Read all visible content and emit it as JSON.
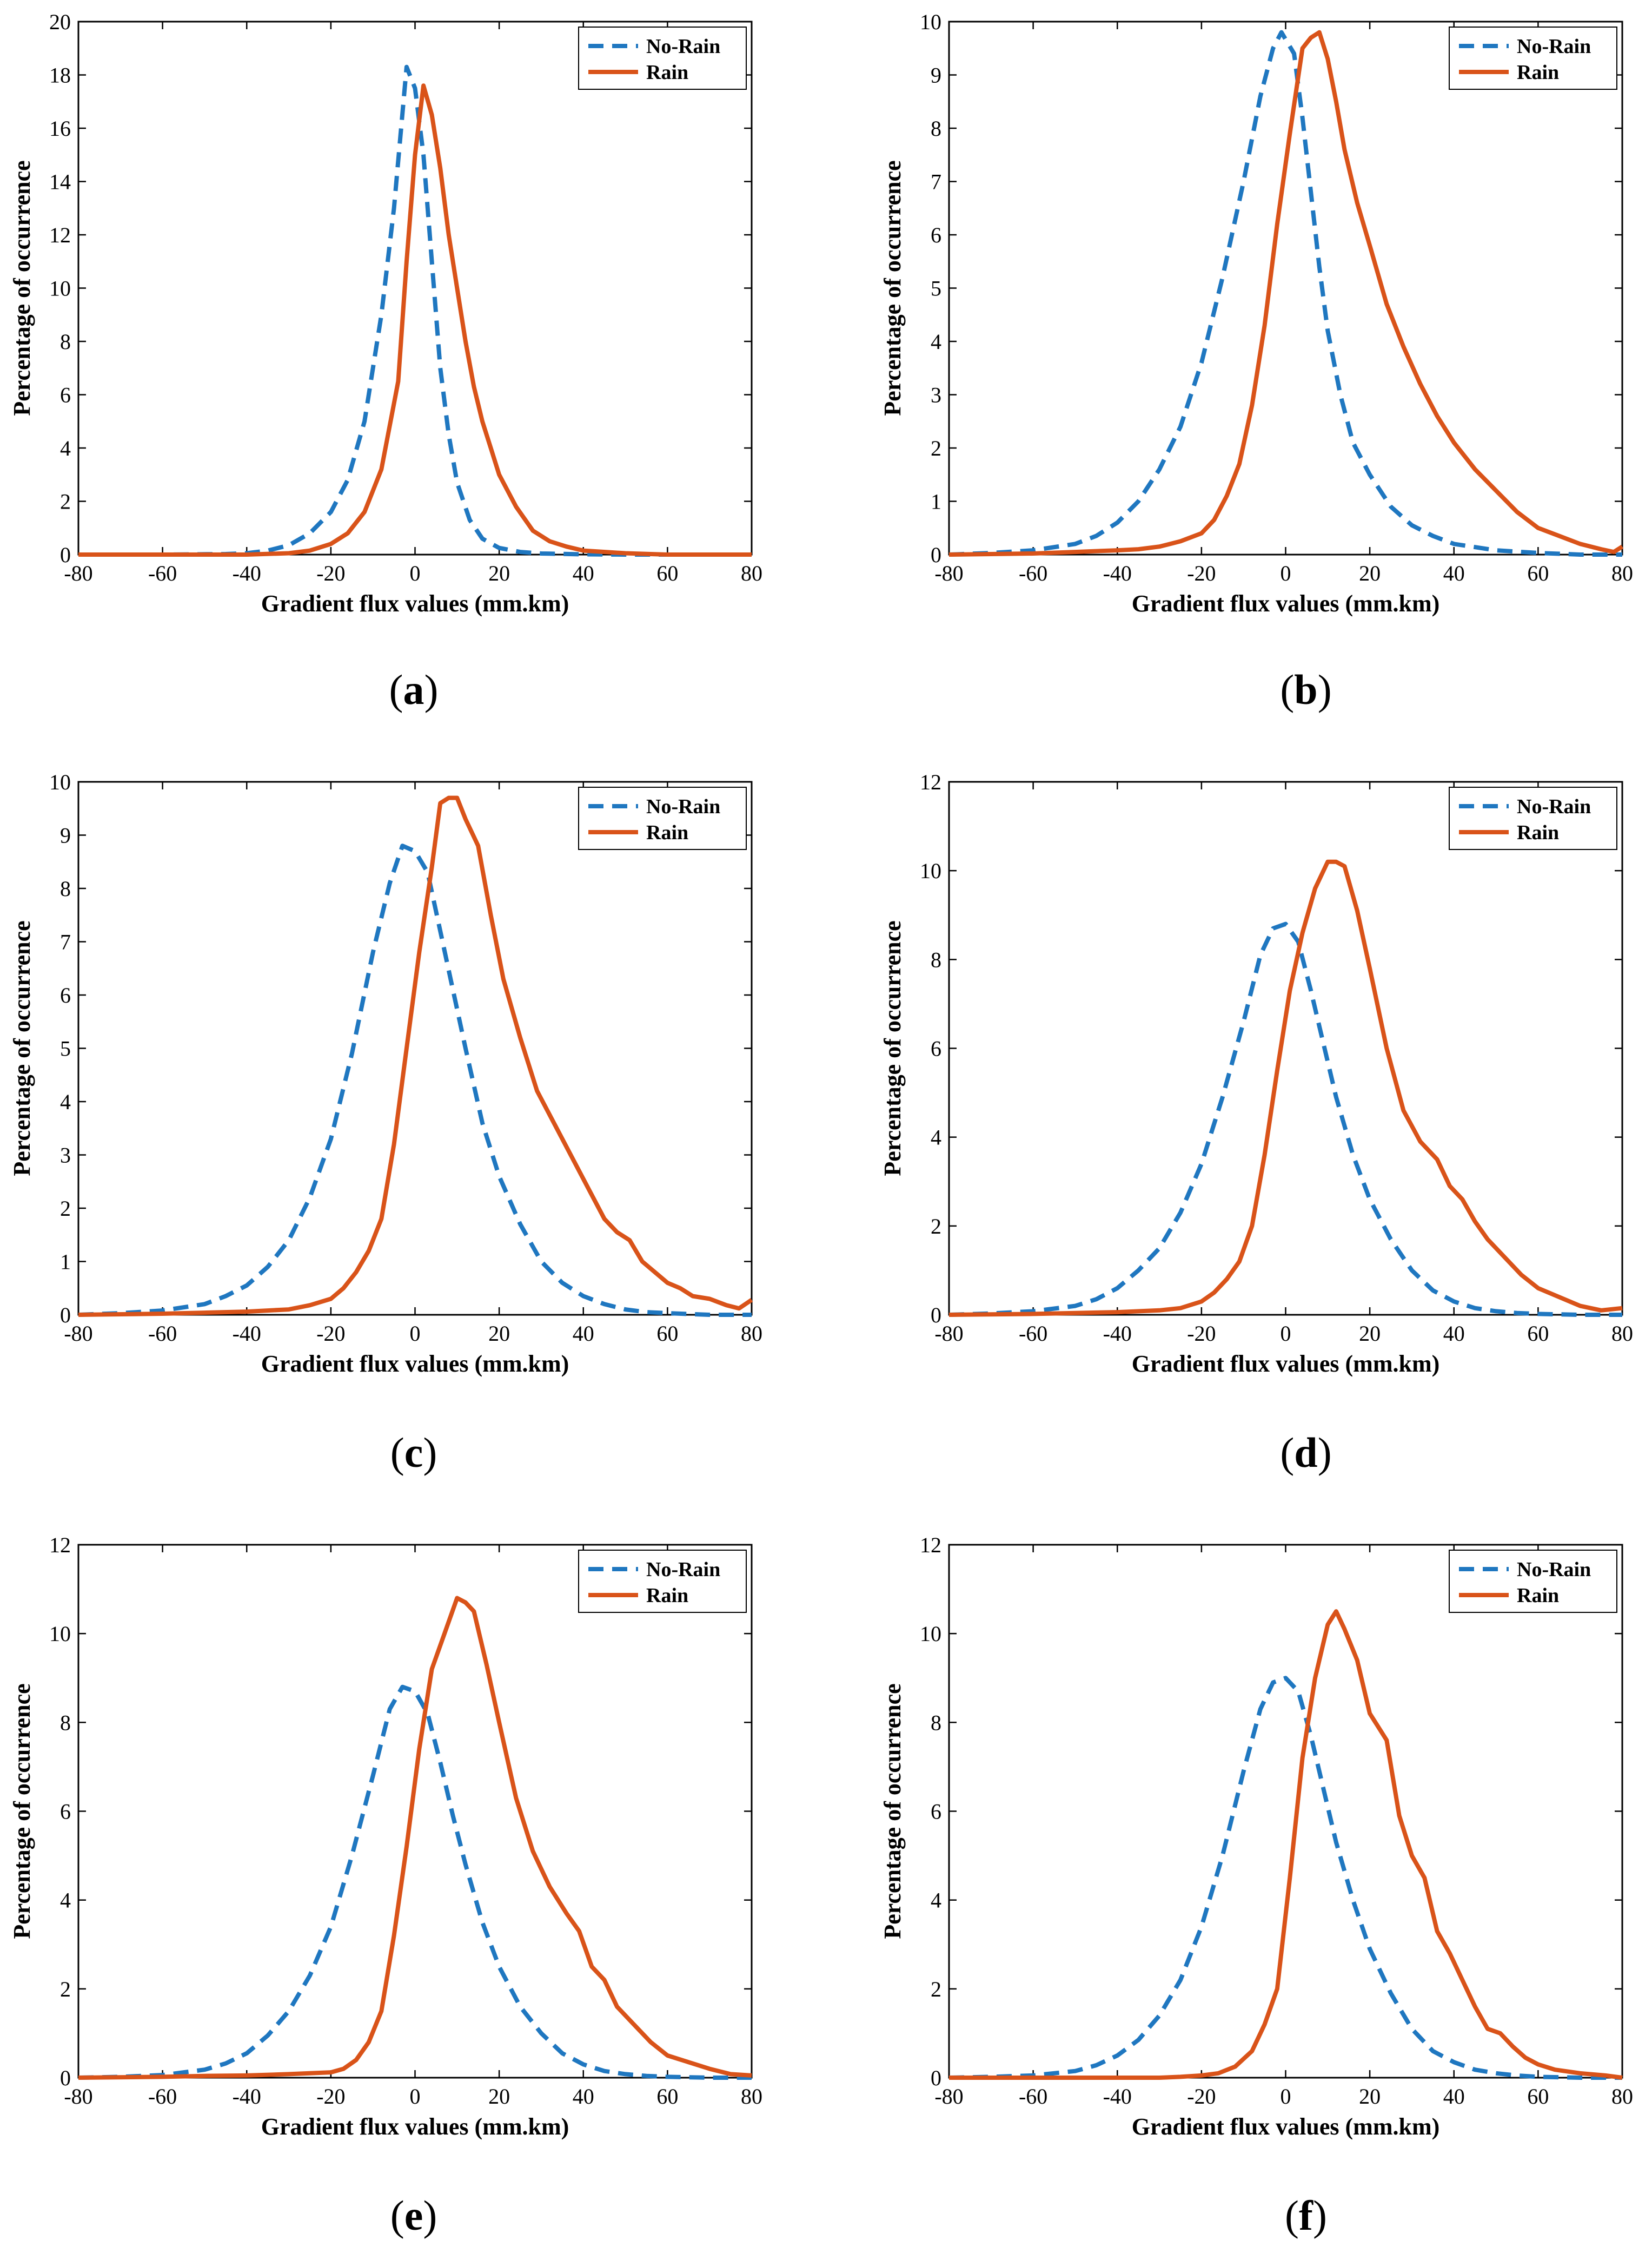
{
  "figure": {
    "colors": {
      "no_rain": "#1f77c0",
      "rain": "#d95319",
      "axis": "#000000"
    }
  },
  "chart_data": [
    {
      "panel": "a",
      "type": "line",
      "caption_open": "(",
      "caption_letter": "a",
      "caption_close": ")",
      "xlabel": "Gradient flux values (mm.km)",
      "ylabel": "Percentage of occurrence",
      "xlim": [
        -80,
        80
      ],
      "ylim": [
        0,
        20
      ],
      "xticks": [
        -80,
        -60,
        -40,
        -20,
        0,
        20,
        40,
        60,
        80
      ],
      "yticks": [
        0,
        2,
        4,
        6,
        8,
        10,
        12,
        14,
        16,
        18,
        20
      ],
      "grid": false,
      "legend": "top-right",
      "series": [
        {
          "name": "No-Rain",
          "style": "dashed",
          "x": [
            -80,
            -60,
            -45,
            -40,
            -35,
            -30,
            -25,
            -20,
            -16,
            -12,
            -8,
            -5,
            -2,
            0,
            2,
            4,
            6,
            8,
            10,
            13,
            16,
            20,
            25,
            30,
            40,
            50,
            60,
            80
          ],
          "y": [
            0,
            0,
            0.02,
            0.05,
            0.15,
            0.35,
            0.8,
            1.6,
            2.8,
            5,
            9,
            13,
            18.3,
            17.5,
            15,
            11,
            7,
            4.5,
            2.7,
            1.3,
            0.6,
            0.25,
            0.1,
            0.04,
            0.01,
            0,
            0,
            0
          ]
        },
        {
          "name": "Rain",
          "style": "solid",
          "x": [
            -80,
            -40,
            -30,
            -25,
            -20,
            -16,
            -12,
            -8,
            -4,
            -2,
            0,
            2,
            4,
            6,
            8,
            10,
            12,
            14,
            16,
            18,
            20,
            24,
            28,
            32,
            36,
            40,
            50,
            60,
            80
          ],
          "y": [
            0,
            0,
            0.05,
            0.15,
            0.4,
            0.8,
            1.6,
            3.2,
            6.5,
            11,
            15,
            17.6,
            16.5,
            14.5,
            12,
            10,
            8,
            6.3,
            5,
            4,
            3,
            1.8,
            0.9,
            0.5,
            0.3,
            0.15,
            0.05,
            0,
            0
          ]
        }
      ]
    },
    {
      "panel": "b",
      "type": "line",
      "caption_open": "(",
      "caption_letter": "b",
      "caption_close": ")",
      "xlabel": "Gradient flux values (mm.km)",
      "ylabel": "Percentage of occurrence",
      "xlim": [
        -80,
        80
      ],
      "ylim": [
        0,
        10
      ],
      "xticks": [
        -80,
        -60,
        -40,
        -20,
        0,
        20,
        40,
        60,
        80
      ],
      "yticks": [
        0,
        1,
        2,
        3,
        4,
        5,
        6,
        7,
        8,
        9,
        10
      ],
      "grid": false,
      "legend": "top-right",
      "series": [
        {
          "name": "No-Rain",
          "style": "dashed",
          "x": [
            -80,
            -70,
            -60,
            -50,
            -45,
            -40,
            -35,
            -30,
            -25,
            -20,
            -15,
            -10,
            -6,
            -3,
            -1,
            2,
            4,
            6,
            8,
            10,
            13,
            16,
            20,
            25,
            30,
            35,
            40,
            50,
            60,
            70,
            80
          ],
          "y": [
            0,
            0.03,
            0.08,
            0.2,
            0.35,
            0.6,
            1,
            1.6,
            2.4,
            3.6,
            5.2,
            7,
            8.6,
            9.5,
            9.8,
            9.4,
            8.2,
            6.8,
            5.4,
            4.2,
            3,
            2.1,
            1.5,
            0.9,
            0.55,
            0.35,
            0.2,
            0.08,
            0.03,
            0,
            0
          ]
        },
        {
          "name": "Rain",
          "style": "solid",
          "x": [
            -80,
            -60,
            -50,
            -40,
            -35,
            -30,
            -25,
            -20,
            -17,
            -14,
            -11,
            -8,
            -5,
            -2,
            1,
            4,
            6,
            8,
            10,
            12,
            14,
            17,
            20,
            24,
            28,
            32,
            36,
            40,
            45,
            50,
            55,
            60,
            65,
            70,
            75,
            78,
            80
          ],
          "y": [
            0,
            0.02,
            0.05,
            0.08,
            0.1,
            0.15,
            0.25,
            0.4,
            0.65,
            1.1,
            1.7,
            2.8,
            4.3,
            6.2,
            7.9,
            9.5,
            9.7,
            9.8,
            9.3,
            8.5,
            7.6,
            6.6,
            5.8,
            4.7,
            3.9,
            3.2,
            2.6,
            2.1,
            1.6,
            1.2,
            0.8,
            0.5,
            0.35,
            0.2,
            0.1,
            0.05,
            0.15
          ]
        }
      ]
    },
    {
      "panel": "c",
      "type": "line",
      "caption_open": "(",
      "caption_letter": "c",
      "caption_close": ")",
      "xlabel": "Gradient flux values (mm.km)",
      "ylabel": "Percentage of occurrence",
      "xlim": [
        -80,
        80
      ],
      "ylim": [
        0,
        10
      ],
      "xticks": [
        -80,
        -60,
        -40,
        -20,
        0,
        20,
        40,
        60,
        80
      ],
      "yticks": [
        0,
        1,
        2,
        3,
        4,
        5,
        6,
        7,
        8,
        9,
        10
      ],
      "grid": false,
      "legend": "top-right",
      "series": [
        {
          "name": "No-Rain",
          "style": "dashed",
          "x": [
            -80,
            -70,
            -60,
            -50,
            -45,
            -40,
            -35,
            -30,
            -25,
            -20,
            -15,
            -10,
            -6,
            -3,
            0,
            3,
            6,
            9,
            12,
            16,
            20,
            25,
            30,
            35,
            40,
            45,
            50,
            55,
            60,
            70,
            80
          ],
          "y": [
            0,
            0.03,
            0.08,
            0.2,
            0.35,
            0.55,
            0.9,
            1.4,
            2.2,
            3.3,
            4.9,
            6.8,
            8.1,
            8.8,
            8.7,
            8.3,
            7.2,
            6.1,
            5,
            3.6,
            2.6,
            1.7,
            1,
            0.6,
            0.35,
            0.2,
            0.1,
            0.05,
            0.03,
            0,
            0
          ]
        },
        {
          "name": "Rain",
          "style": "solid",
          "x": [
            -80,
            -60,
            -50,
            -40,
            -35,
            -30,
            -25,
            -20,
            -17,
            -14,
            -11,
            -8,
            -5,
            -2,
            1,
            4,
            6,
            8,
            10,
            12,
            15,
            18,
            21,
            25,
            29,
            33,
            37,
            41,
            45,
            48,
            51,
            54,
            57,
            60,
            63,
            66,
            70,
            74,
            77,
            80
          ],
          "y": [
            0,
            0.02,
            0.04,
            0.06,
            0.08,
            0.1,
            0.18,
            0.3,
            0.5,
            0.8,
            1.2,
            1.8,
            3.2,
            5,
            6.8,
            8.4,
            9.6,
            9.7,
            9.7,
            9.3,
            8.8,
            7.5,
            6.3,
            5.2,
            4.2,
            3.6,
            3,
            2.4,
            1.8,
            1.55,
            1.4,
            1,
            0.8,
            0.6,
            0.5,
            0.35,
            0.3,
            0.18,
            0.12,
            0.28
          ]
        }
      ]
    },
    {
      "panel": "d",
      "type": "line",
      "caption_open": "(",
      "caption_letter": "d",
      "caption_close": ")",
      "xlabel": "Gradient flux values (mm.km)",
      "ylabel": "Percentage of occurrence",
      "xlim": [
        -80,
        80
      ],
      "ylim": [
        0,
        12
      ],
      "xticks": [
        -80,
        -60,
        -40,
        -20,
        0,
        20,
        40,
        60,
        80
      ],
      "yticks": [
        0,
        2,
        4,
        6,
        8,
        10,
        12
      ],
      "grid": false,
      "legend": "top-right",
      "series": [
        {
          "name": "No-Rain",
          "style": "dashed",
          "x": [
            -80,
            -70,
            -60,
            -50,
            -45,
            -40,
            -35,
            -30,
            -25,
            -20,
            -15,
            -10,
            -6,
            -3,
            0,
            3,
            6,
            9,
            12,
            16,
            20,
            25,
            30,
            35,
            40,
            45,
            50,
            55,
            60,
            70,
            80
          ],
          "y": [
            0,
            0.03,
            0.08,
            0.2,
            0.35,
            0.6,
            1,
            1.5,
            2.3,
            3.4,
            4.9,
            6.6,
            8.1,
            8.7,
            8.8,
            8.4,
            7.3,
            6.1,
            4.9,
            3.6,
            2.6,
            1.7,
            1,
            0.55,
            0.3,
            0.15,
            0.08,
            0.04,
            0.02,
            0,
            0
          ]
        },
        {
          "name": "Rain",
          "style": "solid",
          "x": [
            -80,
            -60,
            -50,
            -40,
            -30,
            -25,
            -20,
            -17,
            -14,
            -11,
            -8,
            -5,
            -2,
            1,
            4,
            7,
            10,
            12,
            14,
            17,
            20,
            24,
            28,
            32,
            36,
            39,
            42,
            45,
            48,
            52,
            56,
            60,
            65,
            70,
            75,
            80
          ],
          "y": [
            0,
            0.02,
            0.04,
            0.06,
            0.1,
            0.15,
            0.3,
            0.5,
            0.8,
            1.2,
            2,
            3.6,
            5.5,
            7.3,
            8.6,
            9.6,
            10.2,
            10.2,
            10.1,
            9.1,
            7.8,
            6,
            4.6,
            3.9,
            3.5,
            2.9,
            2.6,
            2.1,
            1.7,
            1.3,
            0.9,
            0.6,
            0.4,
            0.2,
            0.1,
            0.15
          ]
        }
      ]
    },
    {
      "panel": "e",
      "type": "line",
      "caption_open": "(",
      "caption_letter": "e",
      "caption_close": ")",
      "xlabel": "Gradient flux values (mm.km)",
      "ylabel": "Percentage of occurrence",
      "xlim": [
        -80,
        80
      ],
      "ylim": [
        0,
        12
      ],
      "xticks": [
        -80,
        -60,
        -40,
        -20,
        0,
        20,
        40,
        60,
        80
      ],
      "yticks": [
        0,
        2,
        4,
        6,
        8,
        10,
        12
      ],
      "grid": false,
      "legend": "top-right",
      "series": [
        {
          "name": "No-Rain",
          "style": "dashed",
          "x": [
            -80,
            -70,
            -60,
            -50,
            -45,
            -40,
            -35,
            -30,
            -25,
            -20,
            -15,
            -10,
            -6,
            -3,
            0,
            3,
            6,
            9,
            12,
            16,
            20,
            25,
            30,
            35,
            40,
            45,
            50,
            55,
            60,
            70,
            80
          ],
          "y": [
            0,
            0.02,
            0.06,
            0.18,
            0.32,
            0.55,
            0.95,
            1.5,
            2.3,
            3.4,
            5,
            6.8,
            8.3,
            8.8,
            8.7,
            8.2,
            7.1,
            5.9,
            4.8,
            3.5,
            2.5,
            1.6,
            1,
            0.55,
            0.3,
            0.15,
            0.08,
            0.04,
            0.02,
            0,
            0
          ]
        },
        {
          "name": "Rain",
          "style": "solid",
          "x": [
            -80,
            -60,
            -50,
            -40,
            -30,
            -25,
            -20,
            -17,
            -14,
            -11,
            -8,
            -5,
            -2,
            1,
            4,
            7,
            10,
            12,
            14,
            17,
            20,
            24,
            28,
            32,
            36,
            39,
            42,
            45,
            48,
            52,
            56,
            60,
            65,
            70,
            75,
            80
          ],
          "y": [
            0,
            0.02,
            0.04,
            0.05,
            0.08,
            0.1,
            0.12,
            0.2,
            0.4,
            0.8,
            1.5,
            3.2,
            5.2,
            7.4,
            9.2,
            10,
            10.8,
            10.7,
            10.5,
            9.3,
            8,
            6.3,
            5.1,
            4.3,
            3.7,
            3.3,
            2.5,
            2.2,
            1.6,
            1.2,
            0.8,
            0.5,
            0.35,
            0.2,
            0.08,
            0.05
          ]
        }
      ]
    },
    {
      "panel": "f",
      "type": "line",
      "caption_open": "(",
      "caption_letter": "f",
      "caption_close": ")",
      "xlabel": "Gradient flux values (mm.km)",
      "ylabel": "Percentage of occurrence",
      "xlim": [
        -80,
        80
      ],
      "ylim": [
        0,
        12
      ],
      "xticks": [
        -80,
        -60,
        -40,
        -20,
        0,
        20,
        40,
        60,
        80
      ],
      "yticks": [
        0,
        2,
        4,
        6,
        8,
        10,
        12
      ],
      "grid": false,
      "legend": "top-right",
      "series": [
        {
          "name": "No-Rain",
          "style": "dashed",
          "x": [
            -80,
            -70,
            -60,
            -50,
            -45,
            -40,
            -35,
            -30,
            -25,
            -20,
            -15,
            -10,
            -6,
            -3,
            0,
            3,
            6,
            9,
            12,
            16,
            20,
            25,
            30,
            35,
            40,
            45,
            50,
            55,
            60,
            70,
            80
          ],
          "y": [
            0,
            0.02,
            0.05,
            0.15,
            0.28,
            0.5,
            0.85,
            1.4,
            2.2,
            3.4,
            5,
            6.9,
            8.3,
            8.9,
            9,
            8.7,
            7.7,
            6.5,
            5.3,
            4,
            2.9,
            1.9,
            1.1,
            0.6,
            0.35,
            0.18,
            0.1,
            0.05,
            0.02,
            0,
            0
          ]
        },
        {
          "name": "Rain",
          "style": "solid",
          "x": [
            -80,
            -60,
            -40,
            -30,
            -25,
            -20,
            -16,
            -12,
            -8,
            -5,
            -2,
            1,
            4,
            7,
            10,
            12,
            14,
            17,
            20,
            22,
            24,
            27,
            30,
            33,
            36,
            39,
            42,
            45,
            48,
            51,
            54,
            57,
            60,
            64,
            70,
            76,
            80
          ],
          "y": [
            0,
            0,
            0,
            0,
            0.02,
            0.05,
            0.1,
            0.25,
            0.6,
            1.2,
            2,
            4.5,
            7.2,
            9,
            10.2,
            10.5,
            10.1,
            9.4,
            8.2,
            7.9,
            7.6,
            5.9,
            5,
            4.5,
            3.3,
            2.8,
            2.2,
            1.6,
            1.1,
            1,
            0.7,
            0.45,
            0.3,
            0.18,
            0.1,
            0.05,
            0
          ]
        }
      ]
    }
  ]
}
